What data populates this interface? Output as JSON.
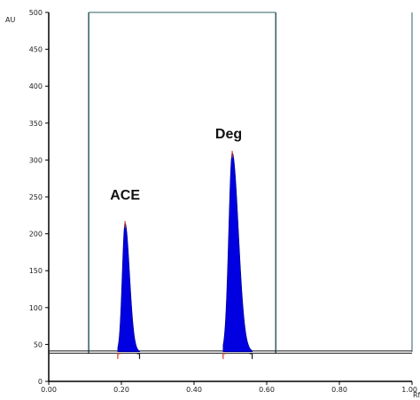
{
  "chart_data": {
    "type": "line",
    "title": "",
    "xlabel": "",
    "ylabel": "",
    "y_unit": "AU",
    "x_unit": "Rf",
    "xlim": [
      0.0,
      1.0
    ],
    "ylim": [
      0,
      500
    ],
    "x_ticks": [
      "0.00",
      "0.20",
      "0.40",
      "0.60",
      "0.80",
      "1.00"
    ],
    "x_tick_values": [
      0.0,
      0.2,
      0.4,
      0.6,
      0.8,
      1.0
    ],
    "y_ticks": [
      "0",
      "50",
      "100",
      "150",
      "200",
      "250",
      "300",
      "350",
      "400",
      "450",
      "500"
    ],
    "y_tick_values": [
      0,
      50,
      100,
      150,
      200,
      250,
      300,
      350,
      400,
      450,
      500
    ],
    "grid": false,
    "baseline": 40,
    "plate_start": 0.11,
    "solvent_front": 0.625,
    "peaks": [
      {
        "label": "ACE",
        "rf": 0.21,
        "height": 215,
        "start": 0.19,
        "end": 0.25,
        "color": "#0000e0"
      },
      {
        "label": "Deg",
        "rf": 0.505,
        "height": 310,
        "start": 0.48,
        "end": 0.56,
        "color": "#0000e0"
      }
    ],
    "colors": {
      "axis": "#000000",
      "border": "#2f5f5f",
      "peak": "#0000e0",
      "baseline": "#1a1a1a",
      "marker": "#d04020"
    }
  }
}
